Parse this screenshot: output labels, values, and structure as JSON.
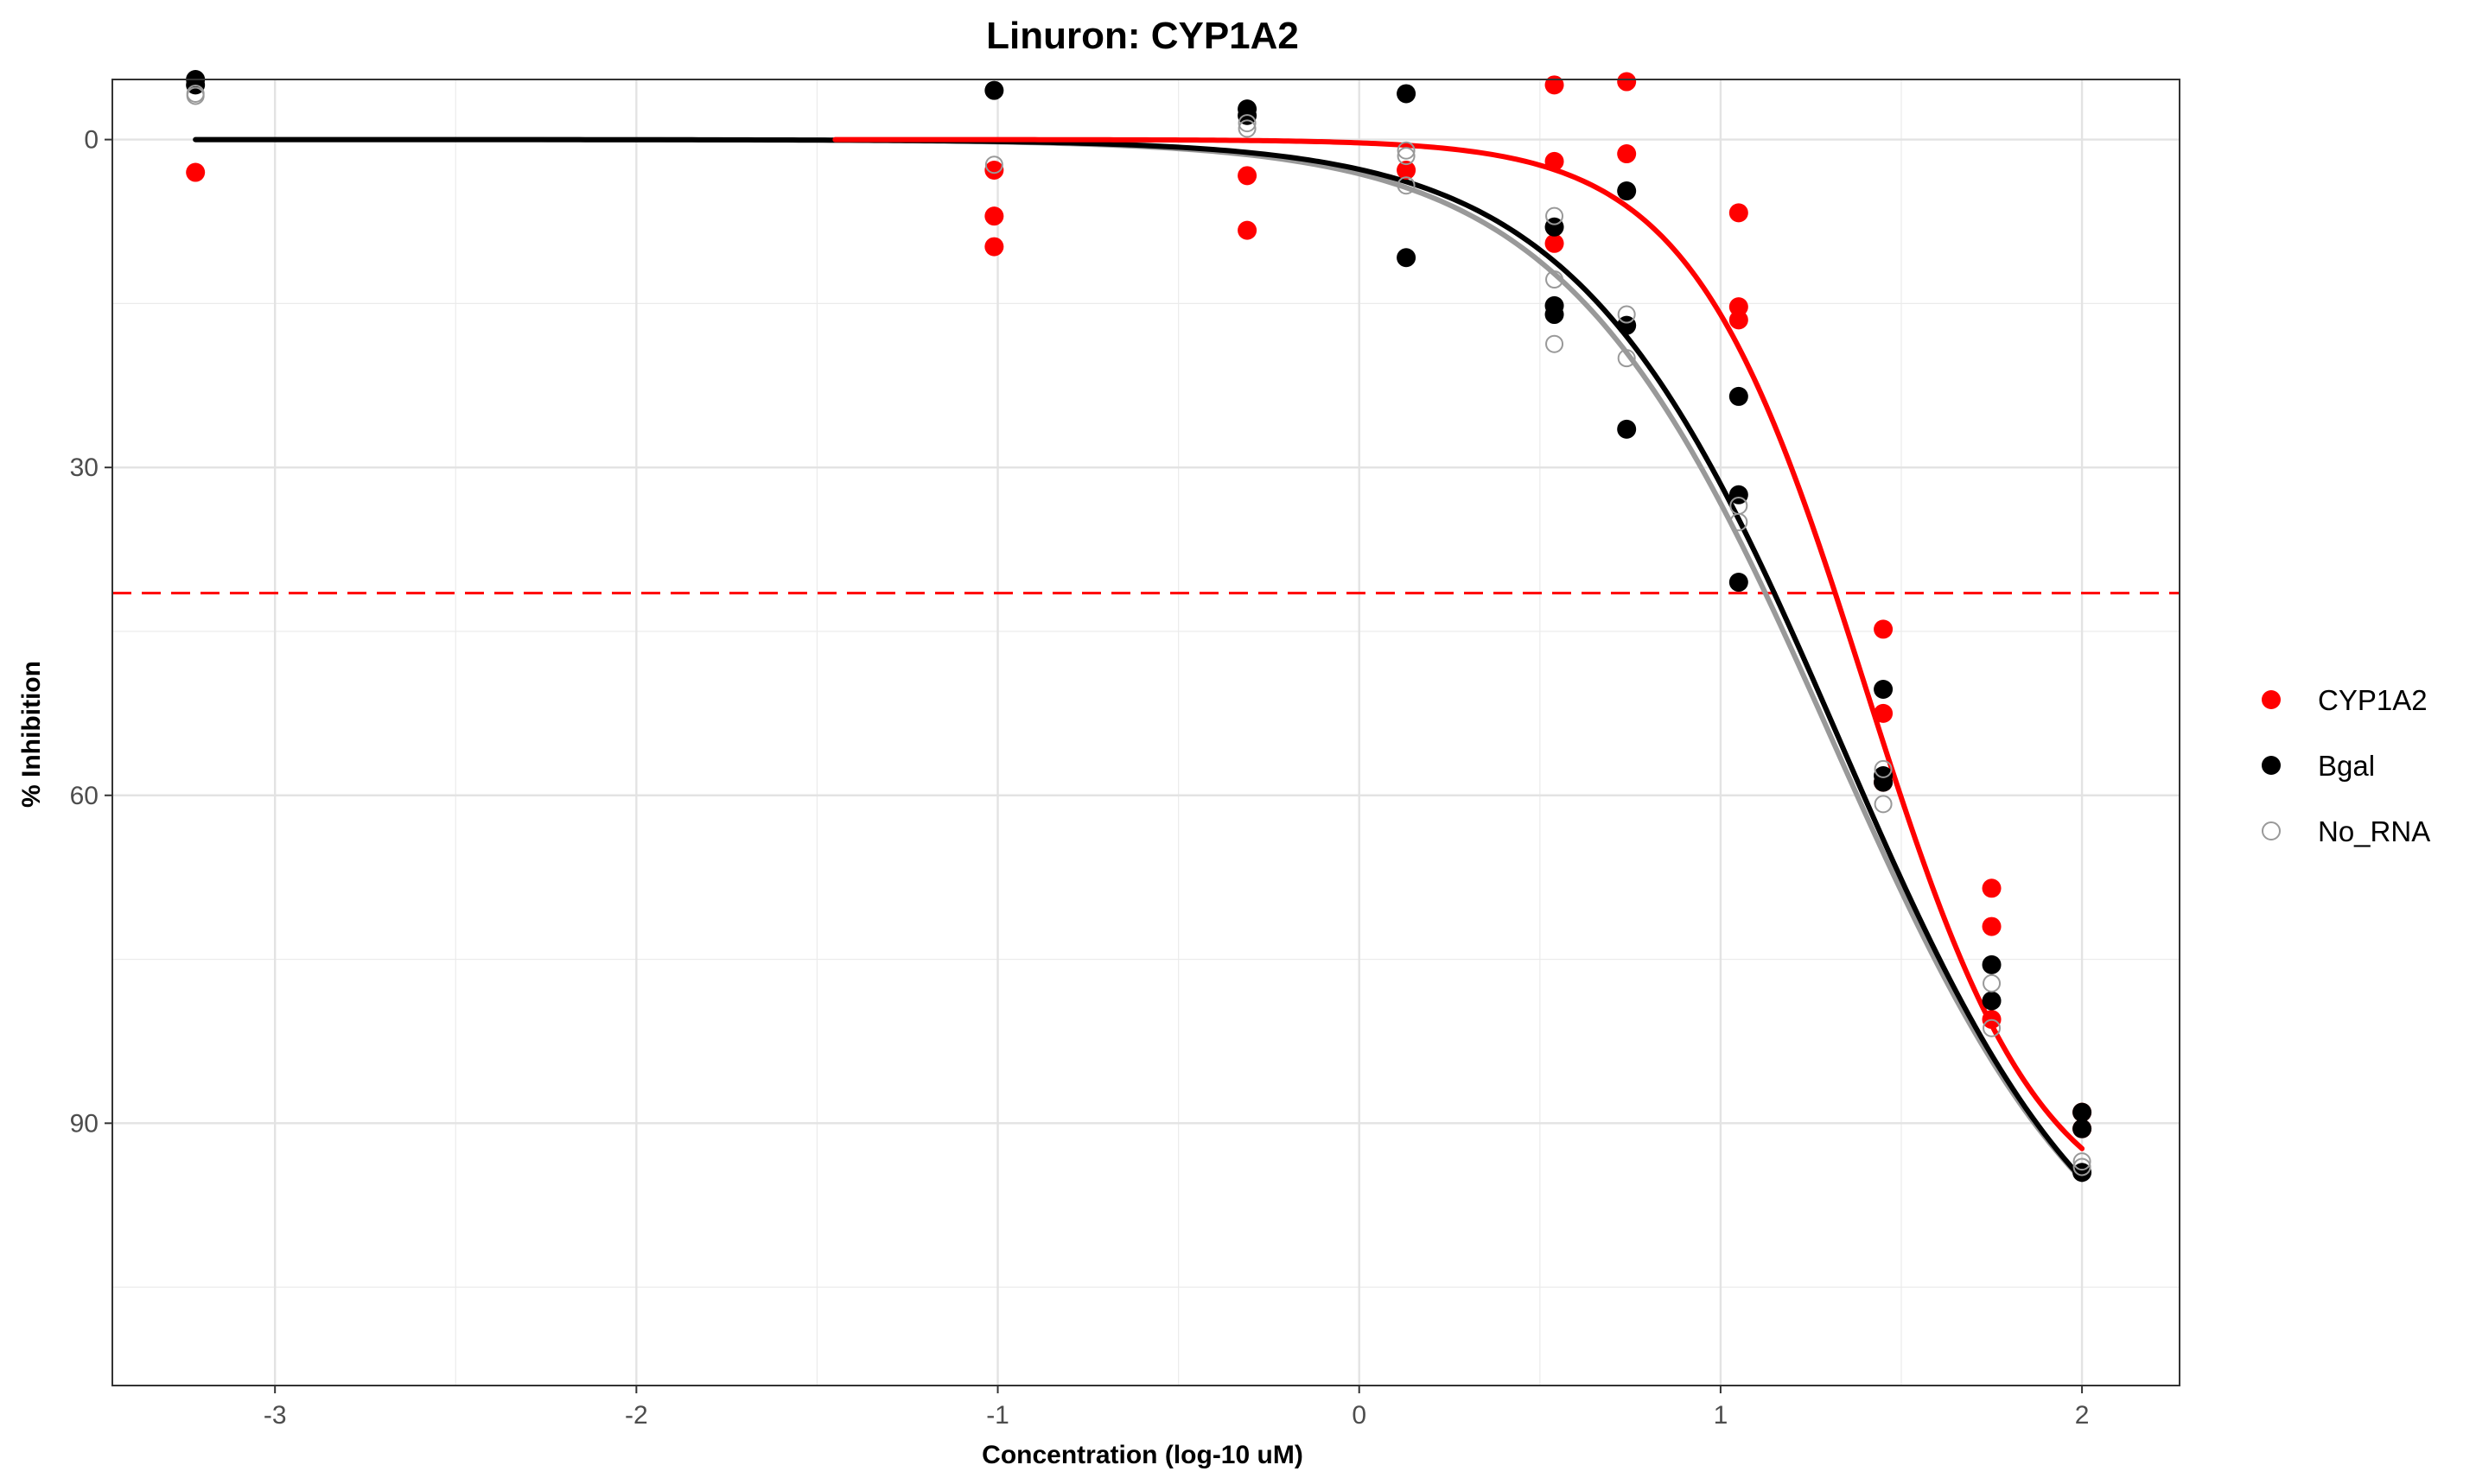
{
  "chart_data": {
    "type": "scatter",
    "title": "Linuron: CYP1A2",
    "xlabel": "Concentration (log-10 uM)",
    "ylabel": "% Inhibition",
    "xlim": [
      -3.45,
      2.27
    ],
    "ylim": [
      114,
      -5.5
    ],
    "y_reversed": true,
    "x_ticks": [
      -3,
      -2,
      -1,
      0,
      1,
      2
    ],
    "x_tick_labels": [
      "-3",
      "-2",
      "-1",
      "0",
      "1",
      "2"
    ],
    "y_ticks": [
      0,
      30,
      60,
      90
    ],
    "y_tick_labels": [
      "0",
      "30",
      "60",
      "90"
    ],
    "grid": true,
    "legend_position": "right",
    "threshold_line": {
      "y": 41.5,
      "color": "#ff0000",
      "style": "dashed"
    },
    "series": [
      {
        "name": "CYP1A2",
        "color": "#ff0000",
        "marker": "filled-circle",
        "points": [
          [
            -3.22,
            3.0
          ],
          [
            -1.01,
            2.8
          ],
          [
            -1.01,
            7.0
          ],
          [
            -1.01,
            9.8
          ],
          [
            -0.31,
            3.3
          ],
          [
            -0.31,
            8.3
          ],
          [
            0.13,
            2.8
          ],
          [
            0.54,
            -5.0
          ],
          [
            0.54,
            2.0
          ],
          [
            0.54,
            9.5
          ],
          [
            0.74,
            -5.3
          ],
          [
            0.74,
            1.3
          ],
          [
            1.05,
            6.7
          ],
          [
            1.05,
            15.3
          ],
          [
            1.05,
            16.5
          ],
          [
            1.45,
            44.8
          ],
          [
            1.45,
            52.5
          ],
          [
            1.45,
            58.8
          ],
          [
            1.75,
            68.5
          ],
          [
            1.75,
            72.0
          ],
          [
            1.75,
            80.5
          ],
          [
            2.0,
            89.0
          ],
          [
            2.0,
            90.5
          ]
        ],
        "curve": {
          "bottom": 0,
          "top": 100,
          "log_ic50": 1.4,
          "hill": 1.8,
          "x_from": -1.45,
          "x_to": 2.0
        }
      },
      {
        "name": "Bgal",
        "color": "#000000",
        "marker": "filled-circle",
        "points": [
          [
            -3.22,
            -5.5
          ],
          [
            -3.22,
            -5.0
          ],
          [
            -1.01,
            -4.5
          ],
          [
            -0.31,
            -2.8
          ],
          [
            -0.31,
            -2.2
          ],
          [
            0.13,
            -4.2
          ],
          [
            0.13,
            10.8
          ],
          [
            0.54,
            8.0
          ],
          [
            0.54,
            15.2
          ],
          [
            0.54,
            16.0
          ],
          [
            0.74,
            4.7
          ],
          [
            0.74,
            17.0
          ],
          [
            0.74,
            26.5
          ],
          [
            1.05,
            23.5
          ],
          [
            1.05,
            32.5
          ],
          [
            1.05,
            40.5
          ],
          [
            1.45,
            50.3
          ],
          [
            1.45,
            58.2
          ],
          [
            1.45,
            58.8
          ],
          [
            1.75,
            75.5
          ],
          [
            1.75,
            78.8
          ],
          [
            2.0,
            89.0
          ],
          [
            2.0,
            90.5
          ],
          [
            2.0,
            94.5
          ]
        ],
        "curve": {
          "bottom": 0,
          "top": 110,
          "log_ic50": 1.33,
          "hill": 1.2,
          "x_from": -3.22,
          "x_to": 2.0
        }
      },
      {
        "name": "No_RNA",
        "color": "#999999",
        "marker": "open-circle",
        "points": [
          [
            -3.22,
            -4.2
          ],
          [
            -3.22,
            -4.0
          ],
          [
            -1.01,
            2.3
          ],
          [
            -0.31,
            -1.5
          ],
          [
            -0.31,
            -1.0
          ],
          [
            0.13,
            1.0
          ],
          [
            0.13,
            1.5
          ],
          [
            0.13,
            4.2
          ],
          [
            0.54,
            7.0
          ],
          [
            0.54,
            12.8
          ],
          [
            0.54,
            18.7
          ],
          [
            0.74,
            16.0
          ],
          [
            0.74,
            20.0
          ],
          [
            1.05,
            33.5
          ],
          [
            1.05,
            35.0
          ],
          [
            1.45,
            57.6
          ],
          [
            1.45,
            60.8
          ],
          [
            1.75,
            77.2
          ],
          [
            1.75,
            81.3
          ],
          [
            2.0,
            93.5
          ],
          [
            2.0,
            94.0
          ]
        ],
        "curve": {
          "bottom": 0,
          "top": 110,
          "log_ic50": 1.31,
          "hill": 1.17,
          "x_from": -3.22,
          "x_to": 2.0
        }
      }
    ]
  }
}
